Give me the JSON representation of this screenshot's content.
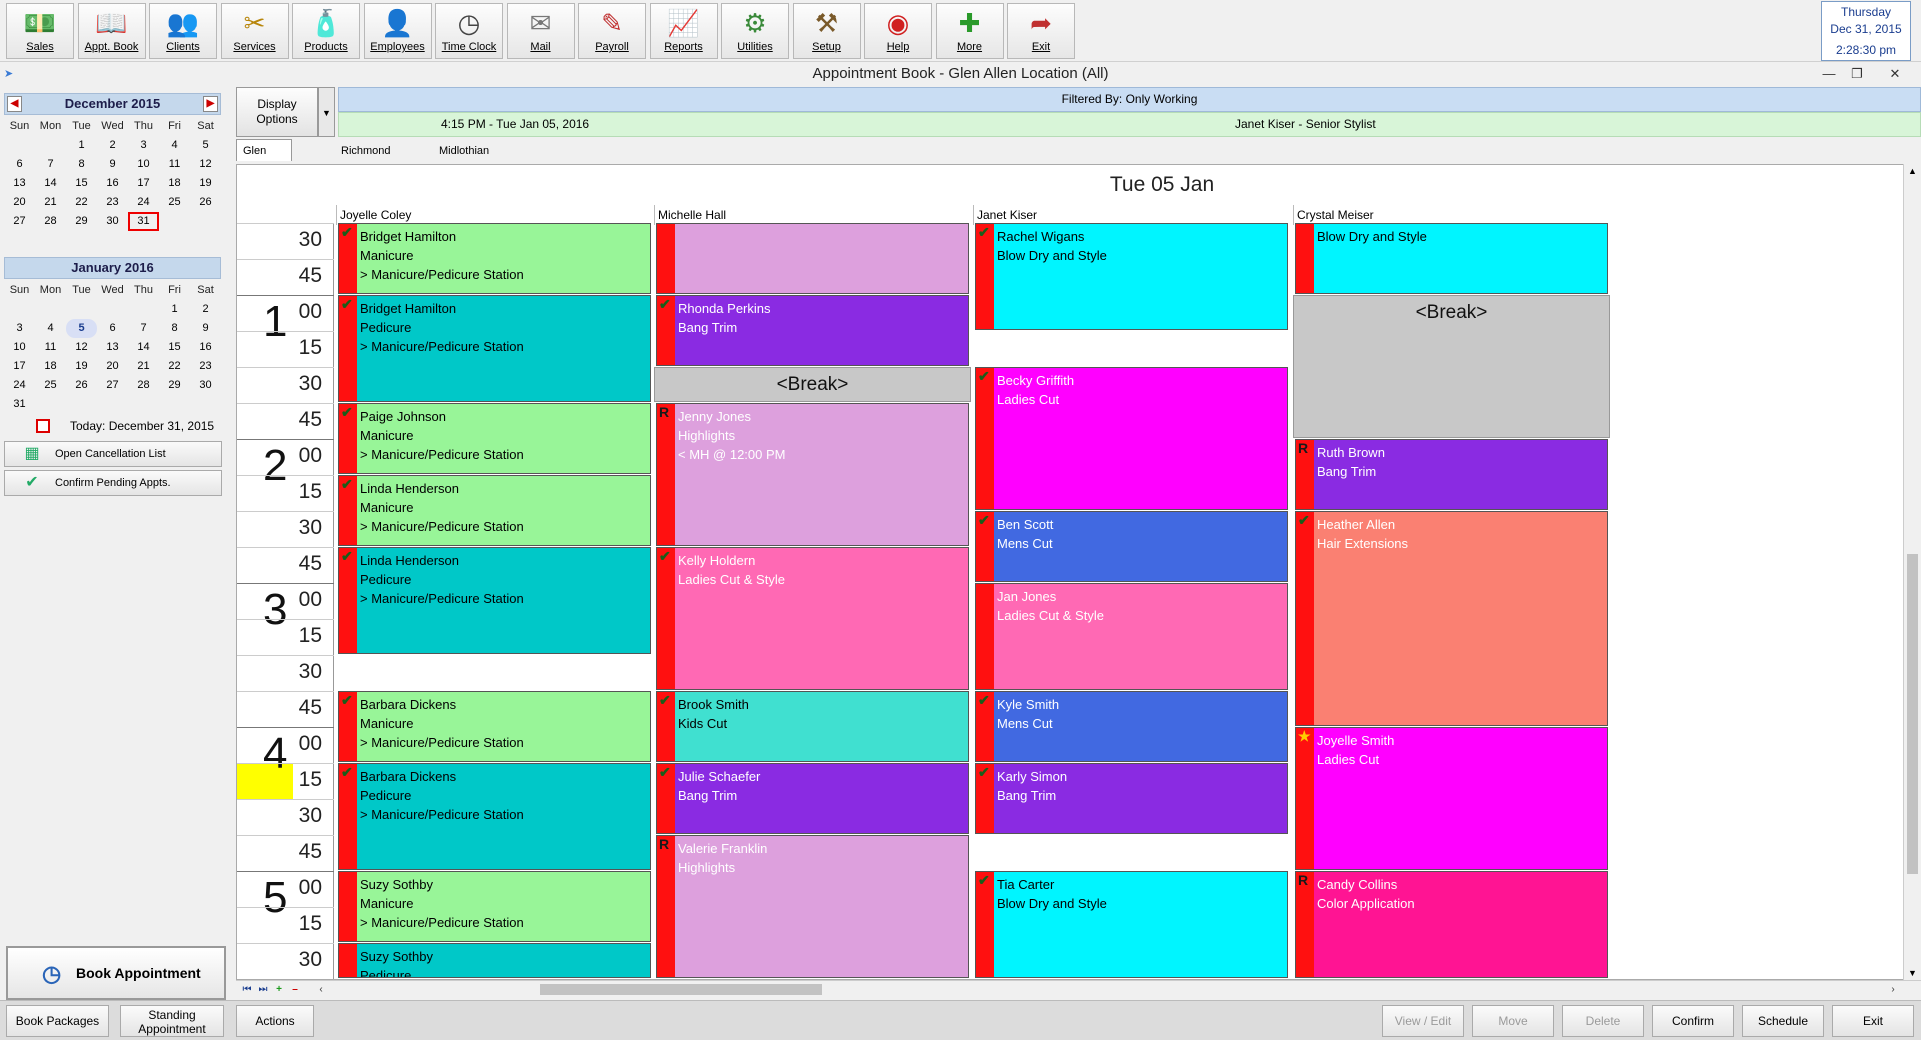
{
  "toolbar": {
    "buttons": [
      {
        "label": "Sales",
        "icon": "cash-icon"
      },
      {
        "label": "Appt. Book",
        "icon": "book-icon"
      },
      {
        "label": "Clients",
        "icon": "clients-icon"
      },
      {
        "label": "Services",
        "icon": "services-icon"
      },
      {
        "label": "Products",
        "icon": "products-icon"
      },
      {
        "label": "Employees",
        "icon": "employees-icon"
      },
      {
        "label": "Time Clock",
        "icon": "clock-icon"
      },
      {
        "label": "Mail",
        "icon": "mail-icon"
      },
      {
        "label": "Payroll",
        "icon": "payroll-icon"
      },
      {
        "label": "Reports",
        "icon": "reports-icon"
      },
      {
        "label": "Utilities",
        "icon": "gears-icon"
      },
      {
        "label": "Setup",
        "icon": "setup-icon"
      },
      {
        "label": "Help",
        "icon": "lifebuoy-icon"
      },
      {
        "label": "More",
        "icon": "plus-icon"
      },
      {
        "label": "Exit",
        "icon": "exit-icon"
      }
    ]
  },
  "clock": {
    "day": "Thursday",
    "date": "Dec 31, 2015",
    "time": "2:28:30 pm"
  },
  "window": {
    "title": "Appointment Book - Glen Allen Location (All)"
  },
  "cal1": {
    "title": "December 2015",
    "dow": [
      "Sun",
      "Mon",
      "Tue",
      "Wed",
      "Thu",
      "Fri",
      "Sat"
    ],
    "days": [
      "",
      "",
      "1",
      "2",
      "3",
      "4",
      "5",
      "6",
      "7",
      "8",
      "9",
      "10",
      "11",
      "12",
      "13",
      "14",
      "15",
      "16",
      "17",
      "18",
      "19",
      "20",
      "21",
      "22",
      "23",
      "24",
      "25",
      "26",
      "27",
      "28",
      "29",
      "30",
      "31",
      "",
      ""
    ],
    "selected": "31"
  },
  "cal2": {
    "title": "January 2016",
    "dow": [
      "Sun",
      "Mon",
      "Tue",
      "Wed",
      "Thu",
      "Fri",
      "Sat"
    ],
    "days": [
      "",
      "",
      "",
      "",
      "",
      "1",
      "2",
      "3",
      "4",
      "5",
      "6",
      "7",
      "8",
      "9",
      "10",
      "11",
      "12",
      "13",
      "14",
      "15",
      "16",
      "17",
      "18",
      "19",
      "20",
      "21",
      "22",
      "23",
      "24",
      "25",
      "26",
      "27",
      "28",
      "29",
      "30",
      "31",
      "",
      "",
      "",
      "",
      "",
      ""
    ],
    "current": "5"
  },
  "today_label": "Today: December 31, 2015",
  "side_buttons": {
    "cancellation": "Open Cancellation List",
    "confirm_pending": "Confirm Pending Appts."
  },
  "book_button": "Book Appointment",
  "display_options": {
    "line1": "Display",
    "line2": "Options"
  },
  "filter": "Filtered By: Only Working",
  "info": {
    "time": "4:15 PM - Tue Jan 05, 2016",
    "stylist": "Janet Kiser - Senior Stylist"
  },
  "tabs": [
    "Glen Allen Location",
    "Richmond Location",
    "Midlothian Location"
  ],
  "day_title": "Tue 05 Jan",
  "columns": [
    "Joyelle Coley",
    "Michelle Hall",
    "Janet Kiser",
    "Crystal Meiser"
  ],
  "time_slots": [
    {
      "hour": "",
      "min": "30"
    },
    {
      "hour": "",
      "min": "45"
    },
    {
      "hour": "1",
      "min": "00"
    },
    {
      "hour": "",
      "min": "15"
    },
    {
      "hour": "",
      "min": "30"
    },
    {
      "hour": "",
      "min": "45"
    },
    {
      "hour": "2",
      "min": "00"
    },
    {
      "hour": "",
      "min": "15"
    },
    {
      "hour": "",
      "min": "30"
    },
    {
      "hour": "",
      "min": "45"
    },
    {
      "hour": "3",
      "min": "00"
    },
    {
      "hour": "",
      "min": "15"
    },
    {
      "hour": "",
      "min": "30"
    },
    {
      "hour": "",
      "min": "45"
    },
    {
      "hour": "4",
      "min": "00"
    },
    {
      "hour": "",
      "min": "15"
    },
    {
      "hour": "",
      "min": "30"
    },
    {
      "hour": "",
      "min": "45"
    },
    {
      "hour": "5",
      "min": "00"
    },
    {
      "hour": "",
      "min": "15"
    },
    {
      "hour": "",
      "min": "30"
    }
  ],
  "appointments": [
    {
      "col": 0,
      "start": 0,
      "slots": 2,
      "color": "#98f598",
      "light": false,
      "mark": "check",
      "lines": [
        "Bridget Hamilton",
        "Manicure",
        "> Manicure/Pedicure Station"
      ]
    },
    {
      "col": 0,
      "start": 2,
      "slots": 3,
      "color": "#00c8c8",
      "light": false,
      "mark": "check",
      "lines": [
        "Bridget Hamilton",
        "Pedicure",
        "> Manicure/Pedicure Station"
      ]
    },
    {
      "col": 0,
      "start": 5,
      "slots": 2,
      "color": "#98f598",
      "light": false,
      "mark": "check",
      "lines": [
        "Paige Johnson",
        "Manicure",
        "> Manicure/Pedicure Station"
      ]
    },
    {
      "col": 0,
      "start": 7,
      "slots": 2,
      "color": "#98f598",
      "light": false,
      "mark": "check",
      "lines": [
        "Linda Henderson",
        "Manicure",
        "> Manicure/Pedicure Station"
      ]
    },
    {
      "col": 0,
      "start": 9,
      "slots": 3,
      "color": "#00c8c8",
      "light": false,
      "mark": "check",
      "lines": [
        "Linda Henderson",
        "Pedicure",
        "> Manicure/Pedicure Station"
      ]
    },
    {
      "col": 0,
      "start": 13,
      "slots": 2,
      "color": "#98f598",
      "light": false,
      "mark": "check",
      "lines": [
        "Barbara Dickens",
        "Manicure",
        "> Manicure/Pedicure Station"
      ]
    },
    {
      "col": 0,
      "start": 15,
      "slots": 3,
      "color": "#00c8c8",
      "light": false,
      "mark": "check",
      "lines": [
        "Barbara Dickens",
        "Pedicure",
        "> Manicure/Pedicure Station"
      ]
    },
    {
      "col": 0,
      "start": 18,
      "slots": 2,
      "color": "#98f598",
      "light": false,
      "mark": "",
      "lines": [
        "Suzy Sothby",
        "Manicure",
        "> Manicure/Pedicure Station"
      ]
    },
    {
      "col": 0,
      "start": 20,
      "slots": 1,
      "color": "#00c8c8",
      "light": false,
      "mark": "",
      "lines": [
        "Suzy Sothby",
        "Pedicure"
      ]
    },
    {
      "col": 1,
      "start": 0,
      "slots": 2,
      "color": "#dda0dd",
      "light": false,
      "mark": "",
      "lines": []
    },
    {
      "col": 1,
      "start": 2,
      "slots": 2,
      "color": "#8a2be2",
      "light": true,
      "mark": "check",
      "lines": [
        "Rhonda Perkins",
        "Bang Trim"
      ]
    },
    {
      "col": 1,
      "start": 5,
      "slots": 4,
      "color": "#dda0dd",
      "light": true,
      "mark": "R",
      "lines": [
        "Jenny Jones",
        "Highlights",
        "< MH @ 12:00 PM"
      ]
    },
    {
      "col": 1,
      "start": 9,
      "slots": 4,
      "color": "#ff69b4",
      "light": true,
      "mark": "check",
      "lines": [
        "Kelly Holdern",
        "Ladies Cut & Style"
      ]
    },
    {
      "col": 1,
      "start": 13,
      "slots": 2,
      "color": "#40e0d0",
      "light": false,
      "mark": "check",
      "lines": [
        "Brook Smith",
        "Kids Cut"
      ]
    },
    {
      "col": 1,
      "start": 15,
      "slots": 2,
      "color": "#8a2be2",
      "light": true,
      "mark": "check",
      "lines": [
        "Julie Schaefer",
        "Bang Trim"
      ]
    },
    {
      "col": 1,
      "start": 17,
      "slots": 4,
      "color": "#dda0dd",
      "light": true,
      "mark": "R",
      "lines": [
        "Valerie Franklin",
        "Highlights"
      ]
    },
    {
      "col": 2,
      "start": 0,
      "slots": 3,
      "color": "#00f5ff",
      "light": false,
      "mark": "check",
      "lines": [
        "Rachel Wigans",
        "Blow Dry and Style"
      ]
    },
    {
      "col": 2,
      "start": 4,
      "slots": 4,
      "color": "#ff00ff",
      "light": true,
      "mark": "check",
      "lines": [
        "Becky Griffith",
        "Ladies Cut"
      ]
    },
    {
      "col": 2,
      "start": 8,
      "slots": 2,
      "color": "#4169e1",
      "light": true,
      "mark": "check",
      "lines": [
        "Ben Scott",
        "Mens Cut"
      ]
    },
    {
      "col": 2,
      "start": 10,
      "slots": 3,
      "color": "#ff69b4",
      "light": true,
      "mark": "",
      "lines": [
        "Jan Jones",
        "Ladies Cut & Style"
      ]
    },
    {
      "col": 2,
      "start": 13,
      "slots": 2,
      "color": "#4169e1",
      "light": true,
      "mark": "check",
      "lines": [
        "Kyle Smith",
        "Mens Cut"
      ]
    },
    {
      "col": 2,
      "start": 15,
      "slots": 2,
      "color": "#8a2be2",
      "light": true,
      "mark": "check",
      "lines": [
        "Karly Simon",
        "Bang Trim"
      ]
    },
    {
      "col": 2,
      "start": 18,
      "slots": 3,
      "color": "#00f5ff",
      "light": false,
      "mark": "check",
      "lines": [
        "Tia Carter",
        "Blow Dry and Style"
      ]
    },
    {
      "col": 3,
      "start": 0,
      "slots": 2,
      "color": "#00f5ff",
      "light": false,
      "mark": "",
      "lines": [
        "Blow Dry and Style"
      ]
    },
    {
      "col": 3,
      "start": 6,
      "slots": 2,
      "color": "#8a2be2",
      "light": true,
      "mark": "R",
      "lines": [
        "Ruth Brown",
        "Bang Trim"
      ]
    },
    {
      "col": 3,
      "start": 8,
      "slots": 6,
      "color": "#fa8072",
      "light": true,
      "mark": "check",
      "lines": [
        "Heather Allen",
        "Hair Extensions"
      ]
    },
    {
      "col": 3,
      "start": 14,
      "slots": 4,
      "color": "#ff00ff",
      "light": true,
      "mark": "star",
      "lines": [
        "Joyelle Smith",
        "Ladies Cut"
      ]
    },
    {
      "col": 3,
      "start": 18,
      "slots": 3,
      "color": "#ff1493",
      "light": true,
      "mark": "R",
      "lines": [
        "Candy Collins",
        "Color Application"
      ]
    }
  ],
  "breaks": [
    {
      "col": 1,
      "start": 4,
      "slots": 1,
      "label": "<Break>"
    },
    {
      "col": 3,
      "start": 2,
      "slots": 4,
      "label": "<Break>"
    }
  ],
  "now_slot": 15,
  "bottom_buttons": {
    "book_packages": "Book Packages",
    "standing1": "Standing",
    "standing2": "Appointment",
    "actions": "Actions",
    "view_edit": "View / Edit",
    "move": "Move",
    "delete": "Delete",
    "confirm": "Confirm",
    "schedule": "Schedule",
    "exit": "Exit"
  }
}
